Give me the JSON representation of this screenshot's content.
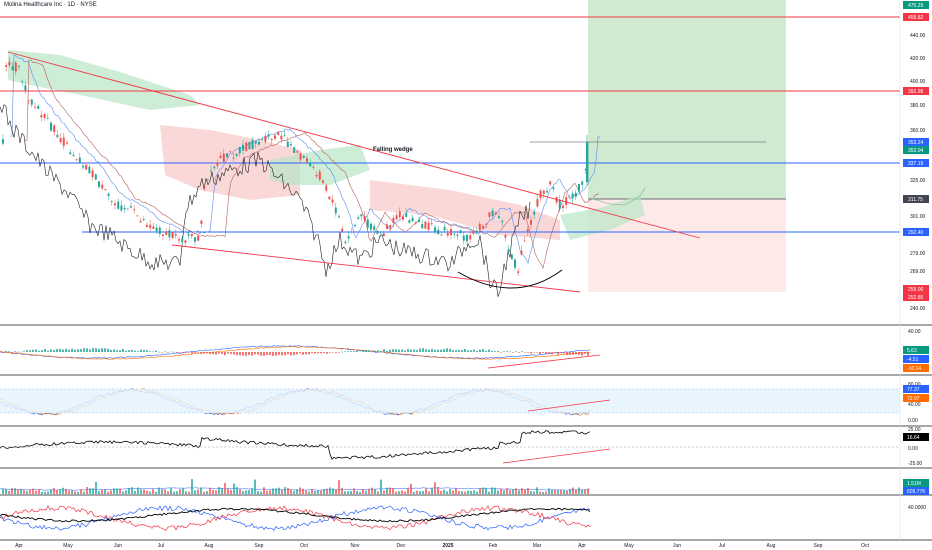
{
  "title": "Molina Healthcare Inc · 1D · NYSE",
  "annotation": "Falling wedge",
  "price_axis": {
    "ticks": [
      "440.00",
      "420.00",
      "400.00",
      "380.00",
      "360.00",
      "325.00",
      "301.00",
      "279.00",
      "269.00",
      "250.00",
      "240.00"
    ],
    "badges": [
      {
        "label": "475.29",
        "color": "#089981"
      },
      {
        "label": "458.82",
        "color": "#f23645"
      },
      {
        "label": "392.98",
        "color": "#f23645"
      },
      {
        "label": "353.24",
        "color": "#2962ff"
      },
      {
        "label": "353.04",
        "color": "#089981"
      },
      {
        "label": "337.19",
        "color": "#2962ff"
      },
      {
        "label": "311.75",
        "color": "#434651"
      },
      {
        "label": "292.40",
        "color": "#2962ff"
      },
      {
        "label": "259.00",
        "color": "#f23645"
      },
      {
        "label": "252.80",
        "color": "#f23645"
      }
    ]
  },
  "panes": {
    "macd": {
      "ticks": [
        "40.00"
      ],
      "badges": [
        {
          "label": "5.63",
          "color": "#089981"
        },
        {
          "label": "-4.51",
          "color": "#2962ff"
        },
        {
          "label": "-10.14",
          "color": "#ff6d00"
        }
      ]
    },
    "stoch": {
      "ticks": [
        "80.00",
        "40.00",
        "0.00"
      ],
      "badges": [
        {
          "label": "77.37",
          "color": "#2962ff"
        },
        {
          "label": "72.97",
          "color": "#ff6d00"
        }
      ]
    },
    "momentum": {
      "ticks": [
        "25.00",
        "0.00",
        "-25.00"
      ],
      "badges": [
        {
          "label": "16.64",
          "color": "#000000"
        }
      ]
    },
    "volume": {
      "badges": [
        {
          "label": "1.51M",
          "color": "#089981"
        },
        {
          "label": "609.77K",
          "color": "#2962ff"
        }
      ]
    },
    "dmi": {
      "ticks": [
        "40.0000"
      ]
    }
  },
  "x_axis": {
    "labels": [
      "Apr",
      "May",
      "Jun",
      "Jul",
      "Aug",
      "Sep",
      "Oct",
      "Nov",
      "Dec",
      "2025",
      "Feb",
      "Mar",
      "Apr",
      "May",
      "Jun",
      "Jul",
      "Aug",
      "Sep",
      "Oct"
    ]
  },
  "colors": {
    "up": "#26a69a",
    "down": "#ef5350",
    "hline_red": "#f23645",
    "hline_blue": "#2962ff",
    "cloud_red": "#f8c8c8",
    "cloud_green": "#b8e6c6",
    "profit_zone": "#c8e6c9",
    "loss_zone": "#fde2e2"
  }
}
